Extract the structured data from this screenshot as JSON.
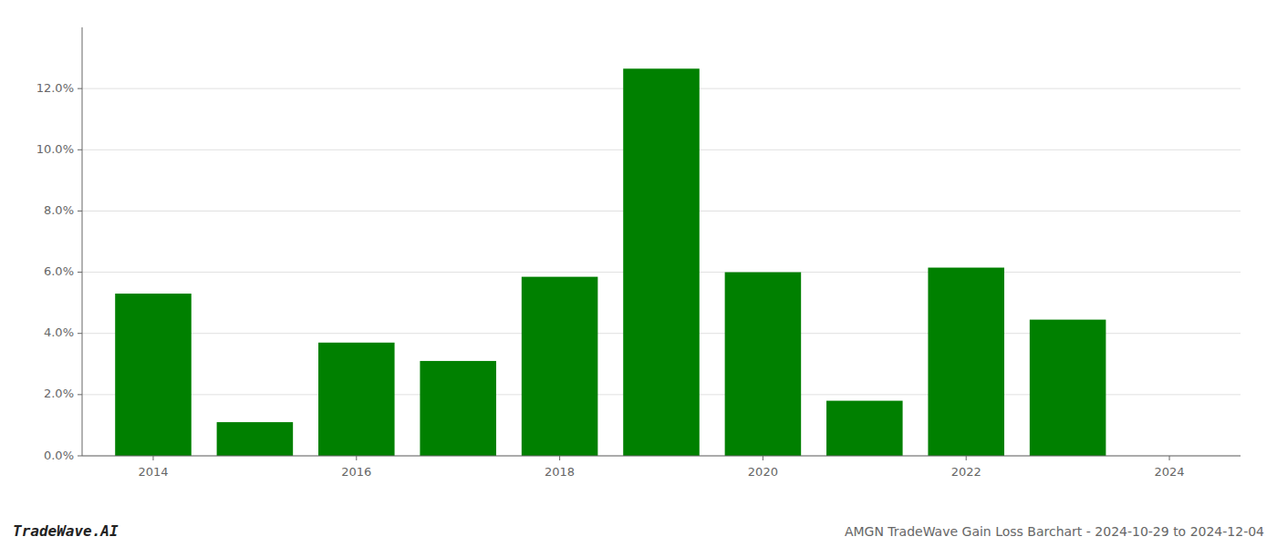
{
  "chart_data": {
    "type": "bar",
    "x": [
      2014,
      2015,
      2016,
      2017,
      2018,
      2019,
      2020,
      2021,
      2022,
      2023,
      2024
    ],
    "values": [
      0.053,
      0.011,
      0.037,
      0.031,
      0.0585,
      0.1265,
      0.06,
      0.018,
      0.0615,
      0.0445,
      0.0
    ],
    "color": "#008000",
    "xlim": [
      2013.3,
      2024.7
    ],
    "xticks": [
      2014,
      2016,
      2018,
      2020,
      2022,
      2024
    ],
    "ylim": [
      0,
      0.14
    ],
    "yticks": [
      {
        "value": 0.0,
        "label": "0.0%"
      },
      {
        "value": 0.02,
        "label": "2.0%"
      },
      {
        "value": 0.04,
        "label": "4.0%"
      },
      {
        "value": 0.06,
        "label": "6.0%"
      },
      {
        "value": 0.08,
        "label": "8.0%"
      },
      {
        "value": 0.1,
        "label": "10.0%"
      },
      {
        "value": 0.12,
        "label": "12.0%"
      }
    ],
    "grid": true,
    "annotations": [
      "TradeWave.AI",
      "AMGN TradeWave Gain Loss Barchart - 2024-10-29 to 2024-12-04"
    ]
  }
}
